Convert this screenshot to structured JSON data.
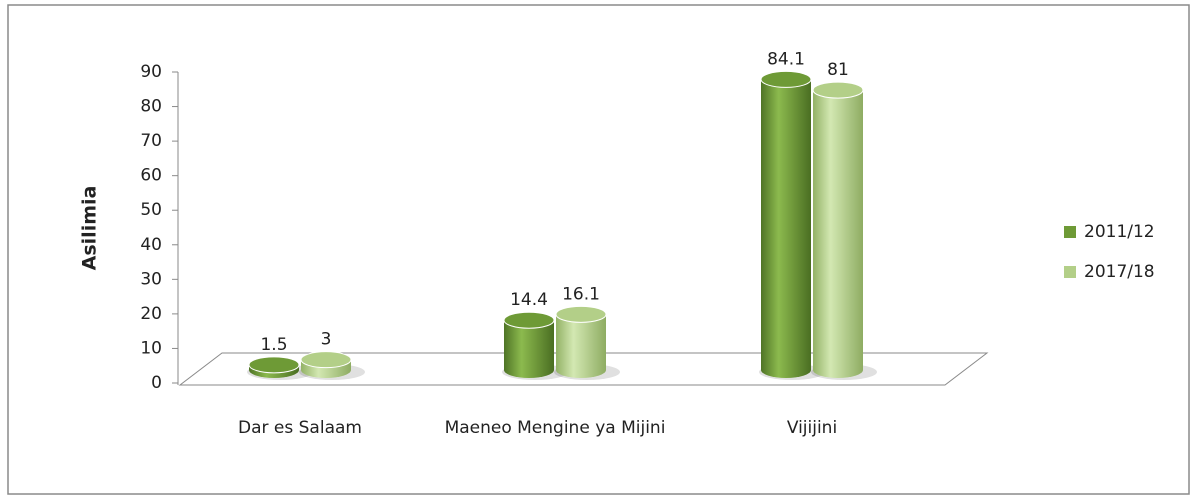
{
  "chart_data": {
    "type": "bar3d",
    "categories": [
      "Dar es Salaam",
      "Maeneo Mengine ya Mijini",
      "Vijijini"
    ],
    "series": [
      {
        "name": "2011/12",
        "color": "#6e9a36",
        "values": [
          1.5,
          14.4,
          84.1
        ]
      },
      {
        "name": "2017/18",
        "color": "#b3cf88",
        "values": [
          3,
          16.1,
          81
        ]
      }
    ],
    "ylabel": "Asilimia",
    "ylim": [
      0,
      90
    ],
    "yticks": [
      0,
      10,
      20,
      30,
      40,
      50,
      60,
      70,
      80,
      90
    ],
    "legend": "right"
  }
}
